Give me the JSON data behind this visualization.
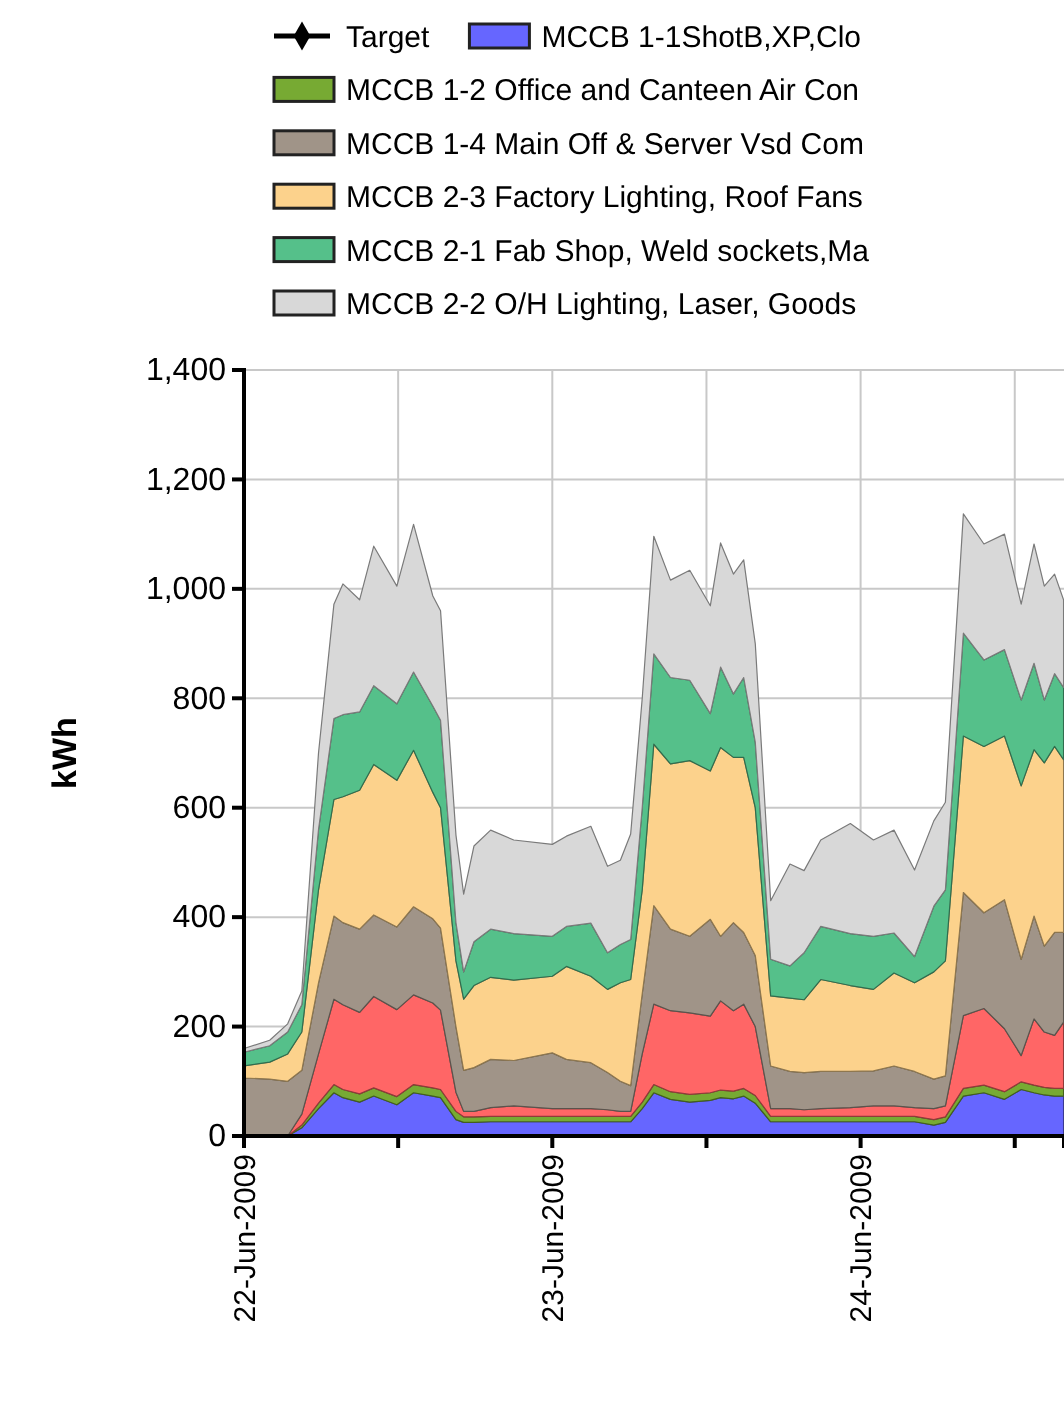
{
  "chart_data": {
    "type": "area",
    "stacked": true,
    "ylabel": "kWh",
    "legend": "top",
    "grid": true,
    "x": [
      "2009-06-22T00:00",
      "2009-06-22T02:00",
      "2009-06-22T03:24",
      "2009-06-22T04:30",
      "2009-06-22T05:48",
      "2009-06-22T07:00",
      "2009-06-22T07:42",
      "2009-06-22T09:00",
      "2009-06-22T10:06",
      "2009-06-22T11:54",
      "2009-06-22T13:12",
      "2009-06-22T14:42",
      "2009-06-22T15:18",
      "2009-06-22T16:30",
      "2009-06-22T17:06",
      "2009-06-22T17:54",
      "2009-06-22T19:12",
      "2009-06-22T21:00",
      "2009-06-23T00:00",
      "2009-06-23T01:06",
      "2009-06-23T03:00",
      "2009-06-23T04:18",
      "2009-06-23T05:18",
      "2009-06-23T06:06",
      "2009-06-23T07:00",
      "2009-06-23T07:54",
      "2009-06-23T09:12",
      "2009-06-23T10:42",
      "2009-06-23T12:18",
      "2009-06-23T13:06",
      "2009-06-23T14:06",
      "2009-06-23T14:54",
      "2009-06-23T15:48",
      "2009-06-23T17:00",
      "2009-06-23T18:30",
      "2009-06-23T19:36",
      "2009-06-23T20:54",
      "2009-06-23T23:12",
      "2009-06-24T01:00",
      "2009-06-24T02:36",
      "2009-06-24T04:12",
      "2009-06-24T05:42",
      "2009-06-24T06:36",
      "2009-06-24T08:00",
      "2009-06-24T09:36",
      "2009-06-24T11:12",
      "2009-06-24T12:30",
      "2009-06-24T13:30",
      "2009-06-24T14:18",
      "2009-06-24T15:06",
      "2009-06-24T15:48"
    ],
    "xlim": [
      "2009-06-22T00:00",
      "2009-06-24T15:50"
    ],
    "xticks": [
      {
        "value": "2009-06-22T00:00",
        "label": "22-Jun-2009"
      },
      {
        "value": "2009-06-22T12:00",
        "label": null
      },
      {
        "value": "2009-06-23T00:00",
        "label": "23-Jun-2009"
      },
      {
        "value": "2009-06-23T12:00",
        "label": null
      },
      {
        "value": "2009-06-24T00:00",
        "label": "24-Jun-2009"
      },
      {
        "value": "2009-06-24T12:00",
        "label": null
      }
    ],
    "ylim": [
      0,
      1400
    ],
    "yticks": [
      0,
      200,
      400,
      600,
      800,
      {
        "value": 1000,
        "label": "1,000"
      },
      {
        "value": 1200,
        "label": "1,200"
      },
      {
        "value": 1400,
        "label": "1,400"
      }
    ],
    "series": [
      {
        "name": "Target",
        "type": "line",
        "marker": "diamond",
        "color": "#000000",
        "values": [
          null,
          null,
          null,
          null,
          null,
          null,
          null,
          null,
          null,
          null,
          null,
          null,
          null,
          null,
          null,
          null,
          null,
          null,
          null,
          null,
          null,
          null,
          null,
          null,
          null,
          null,
          null,
          null,
          null,
          null,
          null,
          null,
          null,
          null,
          null,
          null,
          null,
          null,
          null,
          null,
          null,
          null,
          null,
          null,
          null,
          null,
          null,
          null,
          null,
          null,
          null
        ]
      },
      {
        "name": "MCCB 1-1ShotB,XP,Clo",
        "color": "#6666ff",
        "values": [
          0,
          0,
          0,
          15,
          50,
          79,
          70,
          62,
          73,
          57,
          79,
          73,
          70,
          30,
          25,
          25,
          26,
          26,
          26,
          26,
          26,
          26,
          26,
          26,
          50,
          79,
          67,
          62,
          65,
          70,
          68,
          73,
          60,
          26,
          26,
          26,
          26,
          26,
          26,
          26,
          26,
          20,
          25,
          73,
          79,
          67,
          85,
          79,
          75,
          73,
          73
        ]
      },
      {
        "name": "MCCB 1-2 Office and Canteen Air Con",
        "color": "#77aa33",
        "values": [
          0,
          0,
          0,
          5,
          10,
          15,
          15,
          15,
          15,
          15,
          15,
          15,
          15,
          15,
          10,
          10,
          10,
          10,
          10,
          10,
          10,
          10,
          10,
          10,
          12,
          15,
          14,
          14,
          14,
          14,
          14,
          14,
          14,
          10,
          10,
          10,
          10,
          10,
          10,
          10,
          10,
          10,
          10,
          14,
          14,
          14,
          14,
          14,
          14,
          14,
          14
        ]
      },
      {
        "color": "#ff6666",
        "values": [
          0,
          0,
          0,
          20,
          90,
          156,
          155,
          149,
          167,
          159,
          164,
          155,
          145,
          35,
          10,
          10,
          16,
          19,
          14,
          14,
          14,
          12,
          9,
          9,
          88,
          147,
          148,
          149,
          140,
          163,
          147,
          154,
          126,
          14,
          14,
          12,
          14,
          16,
          19,
          19,
          16,
          20,
          20,
          133,
          140,
          115,
          48,
          121,
          101,
          97,
          121
        ]
      },
      {
        "name": "MCCB 1-4 Main Off & Server Vsd Com",
        "color": "#a09488",
        "values": [
          106,
          104,
          100,
          80,
          130,
          152,
          150,
          152,
          149,
          151,
          161,
          154,
          150,
          120,
          75,
          80,
          88,
          83,
          102,
          90,
          84,
          68,
          55,
          47,
          110,
          180,
          149,
          140,
          177,
          118,
          161,
          131,
          130,
          78,
          68,
          68,
          68,
          66,
          64,
          73,
          66,
          54,
          55,
          225,
          175,
          236,
          176,
          188,
          157,
          188,
          164
        ]
      },
      {
        "name": "MCCB 2-3 Factory Lighting, Roof Fans",
        "color": "#fcd28c",
        "values": [
          22,
          31,
          50,
          70,
          170,
          213,
          230,
          254,
          275,
          268,
          286,
          231,
          220,
          120,
          130,
          150,
          150,
          147,
          140,
          170,
          158,
          152,
          180,
          194,
          190,
          295,
          302,
          321,
          271,
          345,
          302,
          320,
          270,
          128,
          134,
          133,
          168,
          157,
          149,
          170,
          162,
          196,
          210,
          286,
          304,
          299,
          317,
          304,
          335,
          340,
          316
        ]
      },
      {
        "name": "MCCB 2-1 Fab Shop, Weld sockets,Ma",
        "color": "#55c08a",
        "values": [
          25,
          30,
          40,
          50,
          110,
          148,
          150,
          143,
          144,
          140,
          143,
          158,
          160,
          70,
          50,
          80,
          88,
          85,
          73,
          73,
          97,
          67,
          70,
          73,
          150,
          165,
          158,
          147,
          105,
          147,
          116,
          146,
          120,
          67,
          59,
          86,
          97,
          95,
          97,
          73,
          48,
          120,
          130,
          188,
          158,
          158,
          157,
          158,
          115,
          133,
          132
        ]
      },
      {
        "name": "MCCB 2-2 O/H Lighting, Laser, Goods",
        "color": "#d8d8d8",
        "values": [
          7,
          10,
          15,
          25,
          140,
          209,
          239,
          205,
          255,
          215,
          270,
          201,
          200,
          160,
          142,
          175,
          181,
          171,
          168,
          165,
          177,
          158,
          154,
          193,
          200,
          215,
          178,
          201,
          197,
          227,
          219,
          215,
          180,
          107,
          186,
          150,
          158,
          201,
          176,
          188,
          158,
          156,
          160,
          218,
          212,
          211,
          175,
          218,
          208,
          182,
          160
        ]
      }
    ]
  }
}
